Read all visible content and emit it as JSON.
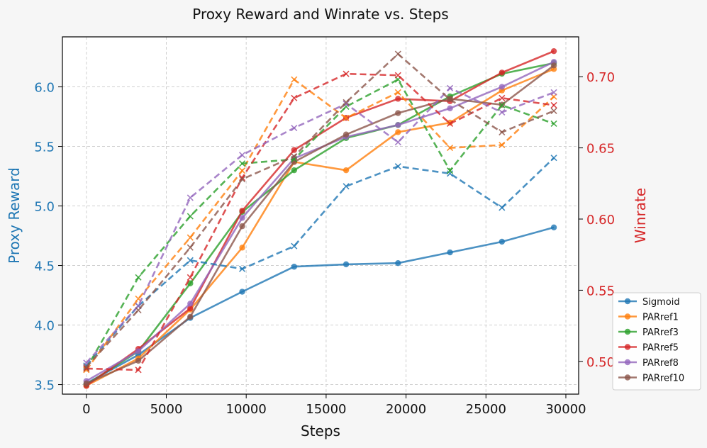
{
  "chart_data": {
    "type": "line",
    "title": "Proxy Reward and Winrate vs. Steps",
    "xlabel": "Steps",
    "ylabel_left": "Proxy Reward",
    "ylabel_right": "Winrate",
    "xlim": [
      -1500,
      30800
    ],
    "ylim_left": [
      3.42,
      6.42
    ],
    "ylim_right": [
      0.477,
      0.728
    ],
    "x_ticks": [
      0,
      5000,
      10000,
      15000,
      20000,
      25000,
      30000
    ],
    "y_ticks_left": [
      3.5,
      4.0,
      4.5,
      5.0,
      5.5,
      6.0
    ],
    "y_ticks_right": [
      0.5,
      0.55,
      0.6,
      0.65,
      0.7
    ],
    "grid": true,
    "legend_position": "lower-right",
    "x": [
      0,
      3250,
      6500,
      9750,
      13000,
      16250,
      19500,
      22750,
      26000,
      29250
    ],
    "series": [
      {
        "name": "Sigmoid",
        "color": "#1f77b4",
        "proxy_reward": [
          3.51,
          3.75,
          4.06,
          4.28,
          4.49,
          4.51,
          4.52,
          4.61,
          4.7,
          4.82
        ],
        "winrate": [
          0.497,
          0.539,
          0.571,
          0.565,
          0.581,
          0.623,
          0.637,
          0.632,
          0.608,
          0.643
        ]
      },
      {
        "name": "PARref1",
        "color": "#ff7f0e",
        "proxy_reward": [
          3.49,
          3.72,
          4.13,
          4.65,
          5.37,
          5.3,
          5.62,
          5.7,
          5.97,
          6.15
        ],
        "winrate": [
          0.494,
          0.544,
          0.587,
          0.634,
          0.698,
          0.671,
          0.689,
          0.65,
          0.652,
          0.686
        ]
      },
      {
        "name": "PARref3",
        "color": "#2ca02c",
        "proxy_reward": [
          3.5,
          3.78,
          4.35,
          4.95,
          5.3,
          5.57,
          5.68,
          5.92,
          6.11,
          6.2
        ],
        "winrate": [
          0.495,
          0.559,
          0.602,
          0.639,
          0.642,
          0.679,
          0.698,
          0.634,
          0.68,
          0.667
        ]
      },
      {
        "name": "PARref5",
        "color": "#d62728",
        "proxy_reward": [
          3.49,
          3.8,
          4.14,
          4.96,
          5.47,
          5.74,
          5.9,
          5.88,
          6.12,
          6.3
        ],
        "winrate": [
          0.495,
          0.494,
          0.559,
          0.629,
          0.685,
          0.702,
          0.701,
          0.667,
          0.685,
          0.68
        ]
      },
      {
        "name": "PARref8",
        "color": "#9467bd",
        "proxy_reward": [
          3.53,
          3.78,
          4.18,
          4.9,
          5.4,
          5.58,
          5.68,
          5.82,
          6.0,
          6.21
        ],
        "winrate": [
          0.499,
          0.539,
          0.615,
          0.645,
          0.664,
          0.681,
          0.654,
          0.692,
          0.675,
          0.689
        ]
      },
      {
        "name": "PARref10",
        "color": "#8c564b",
        "proxy_reward": [
          3.51,
          3.7,
          4.07,
          4.83,
          5.37,
          5.6,
          5.78,
          5.9,
          5.85,
          6.18
        ],
        "winrate": [
          0.496,
          0.536,
          0.58,
          0.628,
          0.644,
          0.682,
          0.716,
          0.684,
          0.661,
          0.676
        ]
      }
    ]
  }
}
